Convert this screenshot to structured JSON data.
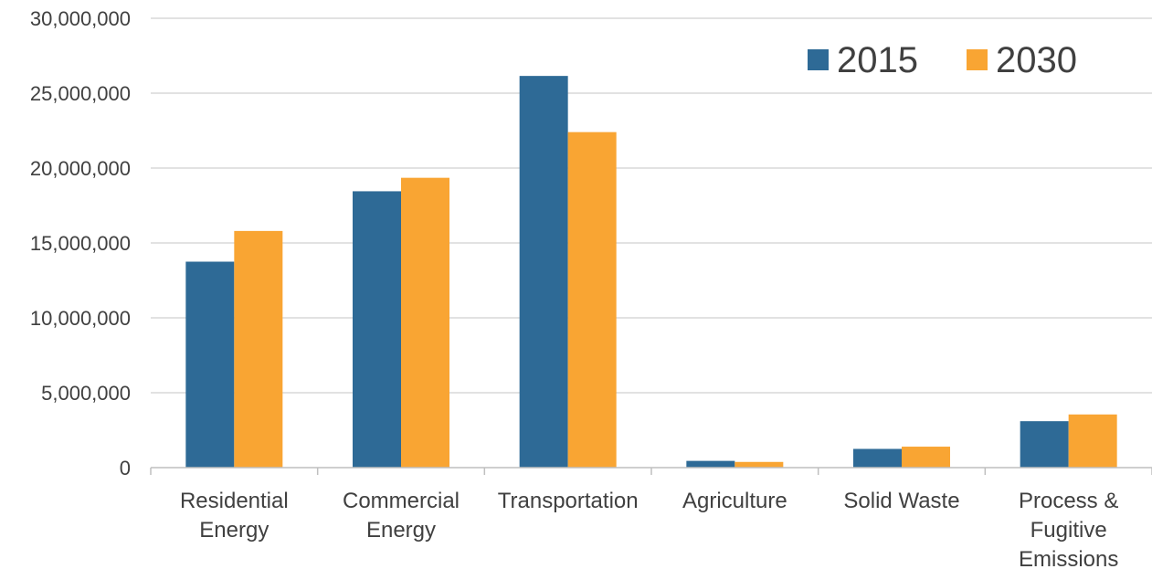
{
  "chart_data": {
    "type": "bar",
    "categories": [
      [
        "Residential",
        "Energy"
      ],
      [
        "Commercial",
        "Energy"
      ],
      [
        "Transportation"
      ],
      [
        "Agriculture"
      ],
      [
        "Solid Waste"
      ],
      [
        "Process &",
        "Fugitive",
        "Emissions"
      ]
    ],
    "series": [
      {
        "name": "2015",
        "color": "#2e6a96",
        "values": [
          13750000,
          18450000,
          26150000,
          450000,
          1250000,
          3100000
        ]
      },
      {
        "name": "2030",
        "color": "#f9a533",
        "values": [
          15800000,
          19350000,
          22400000,
          380000,
          1400000,
          3550000
        ]
      }
    ],
    "ylim": [
      0,
      30000000
    ],
    "yticks": [
      0,
      5000000,
      10000000,
      15000000,
      20000000,
      25000000,
      30000000
    ],
    "ytick_labels": [
      "0",
      "5,000,000",
      "10,000,000",
      "15,000,000",
      "20,000,000",
      "25,000,000",
      "30,000,000"
    ],
    "grid": true,
    "legend_position": "top-right",
    "axis_color": "#bfbfbf",
    "grid_color": "#d9d9d9"
  }
}
